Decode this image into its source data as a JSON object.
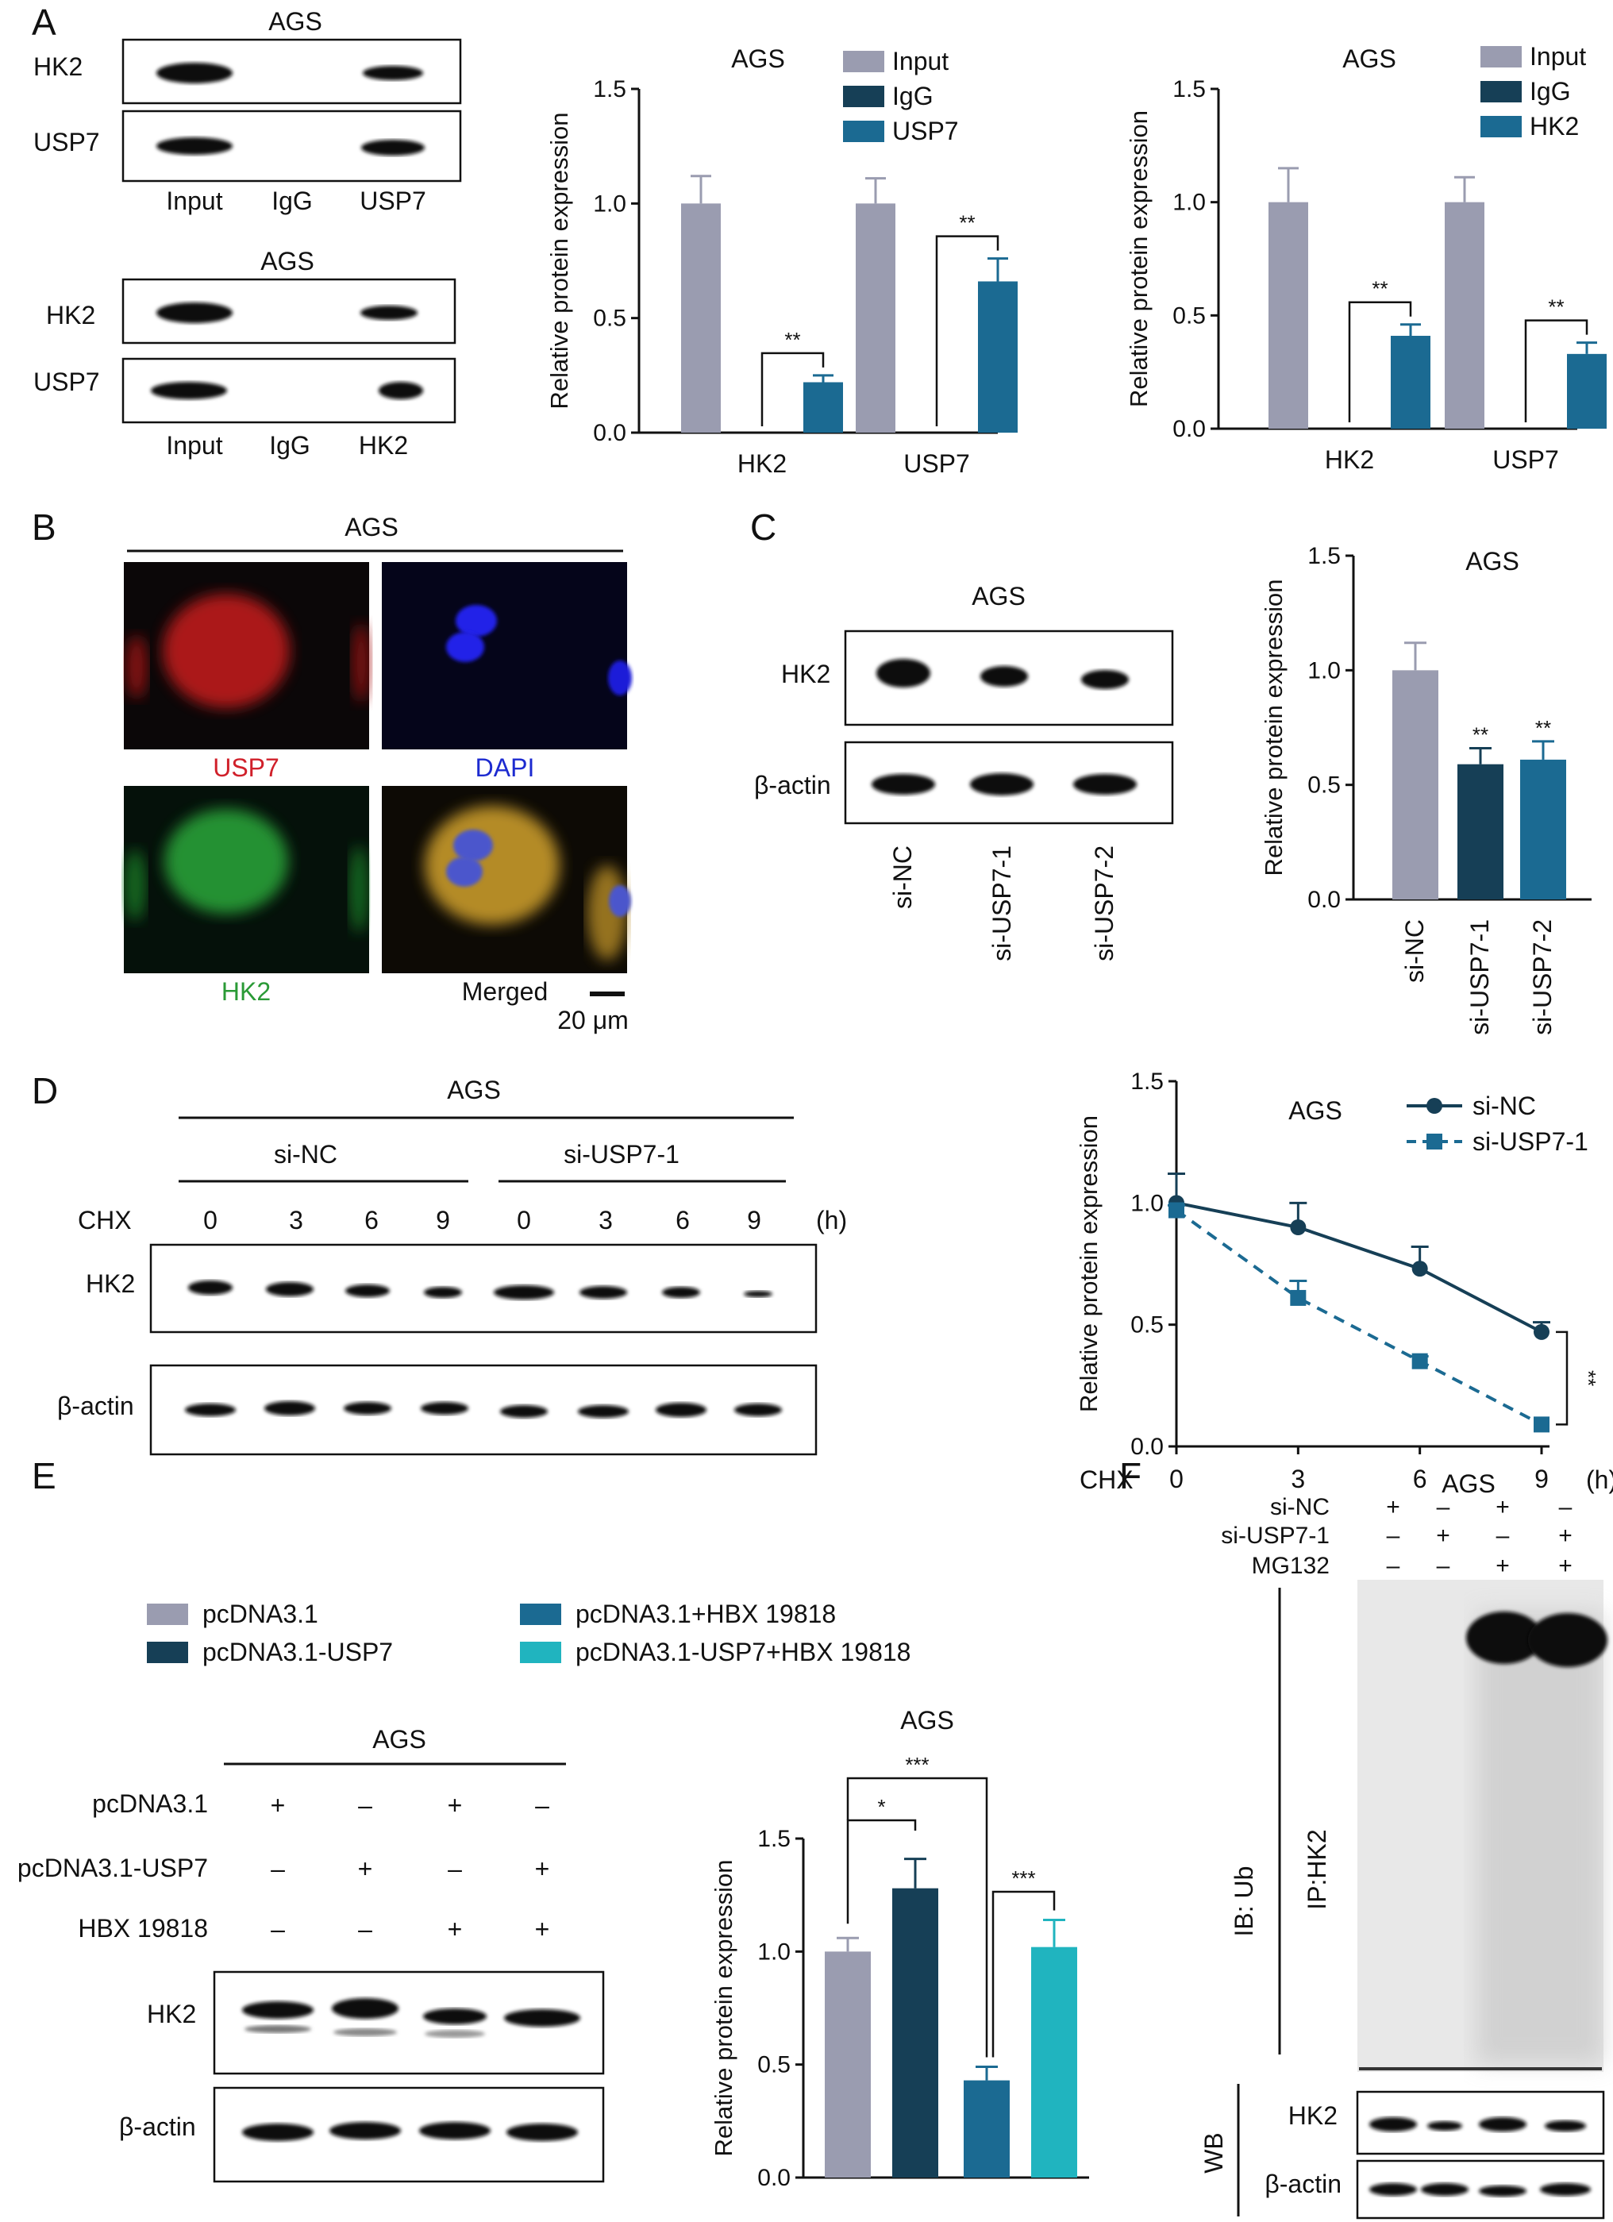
{
  "colors": {
    "gray": "#9a9cb0",
    "dark": "#163f56",
    "blue": "#1b6a92",
    "cyan": "#20b4bf"
  },
  "panels": {
    "A": "A",
    "B": "B",
    "C": "C",
    "D": "D",
    "E": "E",
    "F": "F"
  },
  "panel_A": {
    "blot1": {
      "title": "AGS",
      "rows": [
        "HK2",
        "USP7"
      ],
      "lanes": [
        "Input",
        "IgG",
        "USP7"
      ]
    },
    "blot2": {
      "title": "AGS",
      "rows": [
        "HK2",
        "USP7"
      ],
      "lanes": [
        "Input",
        "IgG",
        "HK2"
      ]
    }
  },
  "panel_B": {
    "title": "AGS",
    "labels": {
      "usp7": "USP7",
      "dapi": "DAPI",
      "hk2": "HK2",
      "merged": "Merged"
    },
    "scale": "20 μm"
  },
  "panel_C": {
    "blot": {
      "title": "AGS",
      "rows": [
        "HK2",
        "β-actin"
      ],
      "lanes": [
        "si-NC",
        "si-USP7-1",
        "si-USP7-2"
      ]
    }
  },
  "panel_D": {
    "blot": {
      "title": "AGS",
      "groups": [
        "si-NC",
        "si-USP7-1"
      ],
      "chx_label": "CHX",
      "times": [
        "0",
        "3",
        "6",
        "9",
        "0",
        "3",
        "6",
        "9"
      ],
      "unit": "(h)",
      "rows": [
        "HK2",
        "β-actin"
      ]
    },
    "chx_axis_label": "CHX",
    "chx_unit": "(h)"
  },
  "panel_E": {
    "legend": [
      "pcDNA3.1",
      "pcDNA3.1-USP7",
      "pcDNA3.1+HBX 19818",
      "pcDNA3.1-USP7+HBX 19818"
    ],
    "blot": {
      "title": "AGS",
      "conditions": [
        {
          "label": "pcDNA3.1",
          "marks": [
            "+",
            "–",
            "+",
            "–"
          ]
        },
        {
          "label": "pcDNA3.1-USP7",
          "marks": [
            "–",
            "+",
            "–",
            "+"
          ]
        },
        {
          "label": "HBX 19818",
          "marks": [
            "–",
            "–",
            "+",
            "+"
          ]
        }
      ],
      "rows": [
        "HK2",
        "β-actin"
      ]
    }
  },
  "panel_F": {
    "title": "AGS",
    "conditions": [
      {
        "label": "si-NC",
        "marks": [
          "+",
          "–",
          "+",
          "–"
        ]
      },
      {
        "label": "si-USP7-1",
        "marks": [
          "–",
          "+",
          "–",
          "+"
        ]
      },
      {
        "label": "MG132",
        "marks": [
          "–",
          "–",
          "+",
          "+"
        ]
      }
    ],
    "ib_label": "IB: Ub",
    "ip_label": "IP:HK2",
    "wb_label": "WB",
    "rows": [
      "HK2",
      "β-actin"
    ]
  },
  "chart_data": [
    {
      "type": "bar",
      "title": "AGS",
      "ylabel": "Relative protein expression",
      "ylim": [
        0,
        1.5
      ],
      "yticks": [
        "0.0",
        "0.5",
        "1.0",
        "1.5"
      ],
      "categories": [
        "HK2",
        "USP7"
      ],
      "legend_position": "top-right",
      "series": [
        {
          "name": "Input",
          "color": "#9a9cb0",
          "values": [
            1.0,
            1.0
          ],
          "errors": [
            0.12,
            0.11
          ]
        },
        {
          "name": "IgG",
          "color": "#163f56",
          "values": [
            0,
            0
          ],
          "errors": [
            0,
            0
          ]
        },
        {
          "name": "USP7",
          "color": "#1b6a92",
          "values": [
            0.22,
            0.66
          ],
          "errors": [
            0.03,
            0.1
          ]
        }
      ],
      "significance": [
        "**",
        "**"
      ]
    },
    {
      "type": "bar",
      "title": "AGS",
      "ylabel": "Relative protein expression",
      "ylim": [
        0,
        1.5
      ],
      "yticks": [
        "0.0",
        "0.5",
        "1.0",
        "1.5"
      ],
      "categories": [
        "HK2",
        "USP7"
      ],
      "legend_position": "top-right",
      "series": [
        {
          "name": "Input",
          "color": "#9a9cb0",
          "values": [
            1.0,
            1.0
          ],
          "errors": [
            0.15,
            0.11
          ]
        },
        {
          "name": "IgG",
          "color": "#163f56",
          "values": [
            0,
            0
          ],
          "errors": [
            0,
            0
          ]
        },
        {
          "name": "HK2",
          "color": "#1b6a92",
          "values": [
            0.41,
            0.33
          ],
          "errors": [
            0.05,
            0.05
          ]
        }
      ],
      "significance": [
        "**",
        "**"
      ]
    },
    {
      "type": "bar",
      "title": "AGS",
      "ylabel": "Relative protein expression",
      "ylim": [
        0,
        1.5
      ],
      "yticks": [
        "0.0",
        "0.5",
        "1.0",
        "1.5"
      ],
      "categories": [
        "si-NC",
        "si-USP7-1",
        "si-USP7-2"
      ],
      "values": [
        1.0,
        0.59,
        0.61
      ],
      "errors": [
        0.12,
        0.07,
        0.08
      ],
      "colors": [
        "#9a9cb0",
        "#163f56",
        "#1b6a92"
      ],
      "significance": [
        "",
        "**",
        "**"
      ]
    },
    {
      "type": "line",
      "title": "AGS",
      "ylabel": "Relative protein expression",
      "ylim": [
        0,
        1.5
      ],
      "yticks": [
        "0.0",
        "0.5",
        "1.0",
        "1.5"
      ],
      "x": [
        0,
        3,
        6,
        9
      ],
      "xticks": [
        "0",
        "3",
        "6",
        "9"
      ],
      "legend_position": "top-right",
      "series": [
        {
          "name": "si-NC",
          "color": "#163f56",
          "marker": "circle",
          "values": [
            1.0,
            0.9,
            0.73,
            0.47
          ],
          "errors": [
            0.12,
            0.1,
            0.09,
            0.04
          ]
        },
        {
          "name": "si-USP7-1",
          "color": "#1b6a92",
          "marker": "square",
          "dashed": true,
          "values": [
            0.97,
            0.61,
            0.35,
            0.09
          ],
          "errors": [
            0.02,
            0.07,
            0.02,
            0.01
          ]
        }
      ],
      "significance": "**"
    },
    {
      "type": "bar",
      "title": "AGS",
      "ylabel": "Relative protein expression",
      "ylim": [
        0,
        1.5
      ],
      "yticks": [
        "0.0",
        "0.5",
        "1.0",
        "1.5"
      ],
      "categories": [
        "pcDNA3.1",
        "pcDNA3.1-USP7",
        "pcDNA3.1+HBX 19818",
        "pcDNA3.1-USP7+HBX 19818"
      ],
      "values": [
        1.0,
        1.28,
        0.43,
        1.02
      ],
      "errors": [
        0.06,
        0.13,
        0.06,
        0.12
      ],
      "colors": [
        "#9a9cb0",
        "#163f56",
        "#1b6a92",
        "#20b4bf"
      ],
      "comparisons": [
        {
          "from": 0,
          "to": 1,
          "label": "*"
        },
        {
          "from": 0,
          "to": 2,
          "label": "***"
        },
        {
          "from": 2,
          "to": 3,
          "label": "***"
        }
      ]
    }
  ]
}
